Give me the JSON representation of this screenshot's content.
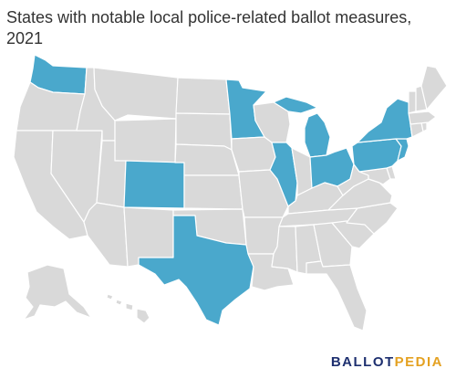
{
  "title": "States with notable local police-related ballot measures, 2021",
  "colors": {
    "highlight": "#4aa8cc",
    "base": "#d9d9d9",
    "border": "#ffffff"
  },
  "highlighted_states": [
    "Washington",
    "Minnesota",
    "Michigan",
    "Colorado",
    "Illinois",
    "Ohio",
    "Texas",
    "Pennsylvania",
    "New York",
    "New Jersey"
  ],
  "logo": {
    "part1": "BALLOT",
    "part2": "PEDIA"
  }
}
